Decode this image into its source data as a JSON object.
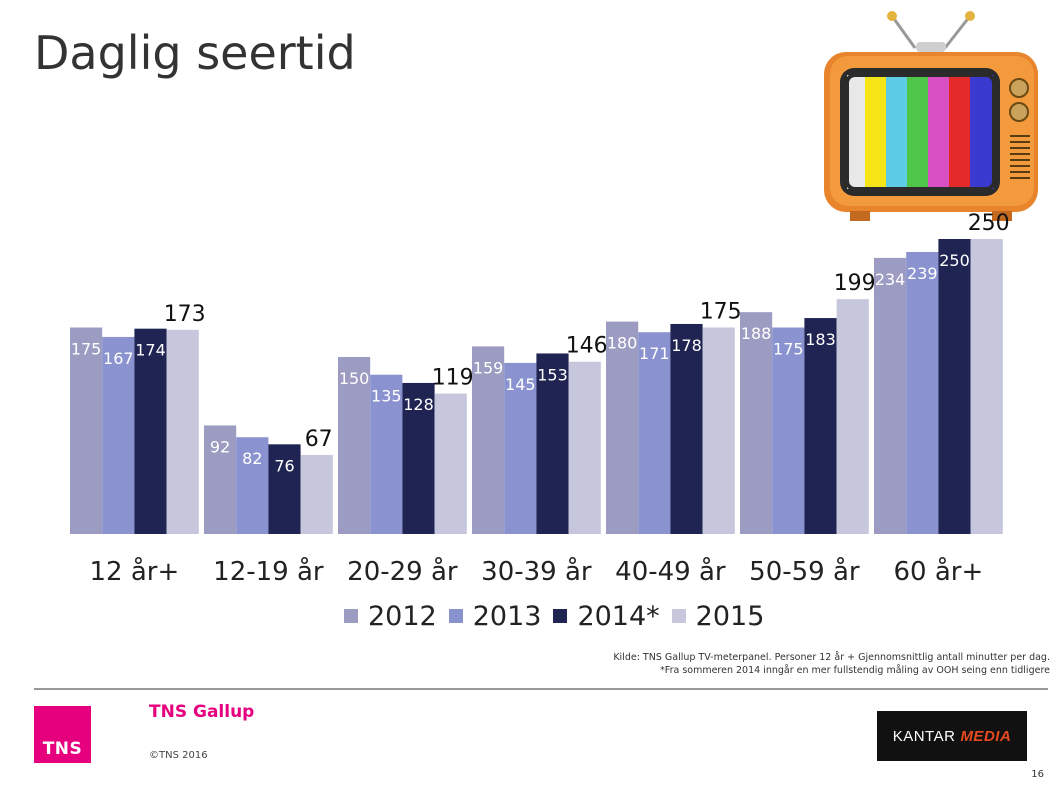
{
  "title": "Daglig seertid",
  "chart_data": {
    "type": "bar",
    "categories": [
      "12 år+",
      "12-19 år",
      "20-29 år",
      "30-39 år",
      "40-49 år",
      "50-59 år",
      "60 år+"
    ],
    "series": [
      {
        "name": "2012",
        "color": "#9c9cc3",
        "values": [
          175,
          92,
          150,
          159,
          180,
          188,
          234
        ]
      },
      {
        "name": "2013",
        "color": "#8a93cf",
        "values": [
          167,
          82,
          135,
          145,
          171,
          175,
          239
        ]
      },
      {
        "name": "2014*",
        "color": "#1f2452",
        "values": [
          174,
          76,
          128,
          153,
          178,
          183,
          250
        ]
      },
      {
        "name": "2015",
        "color": "#c6c6dd",
        "values": [
          173,
          67,
          119,
          146,
          175,
          199,
          250
        ]
      }
    ],
    "ylim": [
      0,
      250
    ],
    "grid": false,
    "legend": "bottom"
  },
  "source": {
    "line1": "Kilde: TNS Gallup TV-meterpanel. Personer 12 år + Gjennomsnittlig antall minutter per dag.",
    "line2": "*Fra sommeren 2014 inngår en mer fullstendig måling av OOH seing enn tidligere"
  },
  "footer": {
    "logo_text": "TNS",
    "brand": "TNS Gallup",
    "copyright": "©TNS 2016",
    "kantar_text": "KANTAR",
    "kantar_media": "MEDIA",
    "page_number": "16"
  }
}
